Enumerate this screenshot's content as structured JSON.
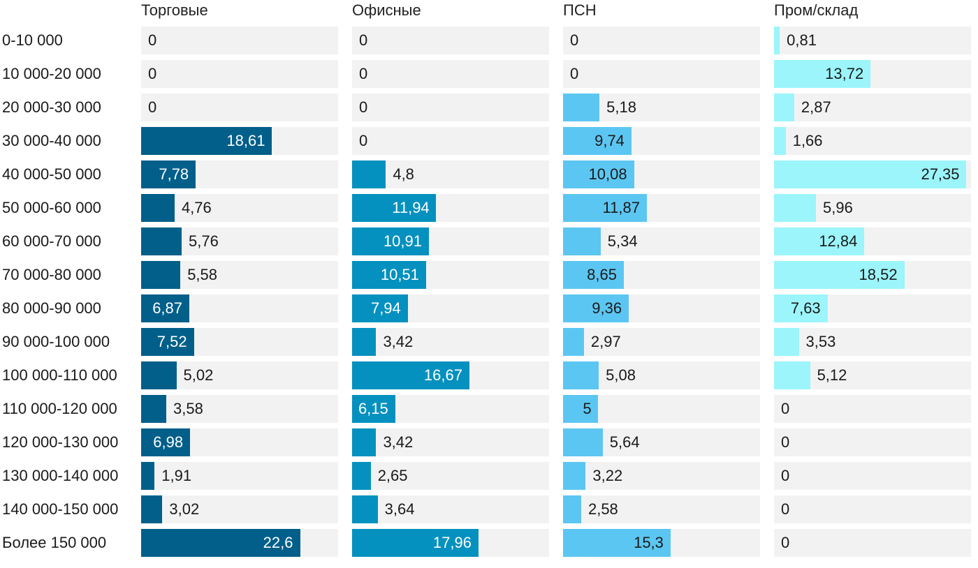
{
  "chart_data": {
    "type": "bar",
    "orientation": "horizontal",
    "layout": "small-multiples",
    "title": "",
    "xlabel": "",
    "ylabel": "",
    "xlim": [
      0,
      28
    ],
    "grid": false,
    "legend": "none",
    "categories": [
      "0-10 000",
      "10 000-20 000",
      "20 000-30 000",
      "30 000-40 000",
      "40 000-50 000",
      "50 000-60 000",
      "60 000-70 000",
      "70 000-80 000",
      "80 000-90 000",
      "90 000-100 000",
      "100 000-110 000",
      "110 000-120 000",
      "120 000-130 000",
      "130 000-140 000",
      "140 000-150 000",
      "Более 150 000"
    ],
    "series": [
      {
        "name": "Торговые",
        "color": "#015f8a",
        "label_color_inside": "#ffffff",
        "values": [
          0,
          0,
          0,
          18.61,
          7.78,
          4.76,
          5.76,
          5.58,
          6.87,
          7.52,
          5.02,
          3.58,
          6.98,
          1.91,
          3.02,
          22.6
        ],
        "labels": [
          "0",
          "0",
          "0",
          "18,61",
          "7,78",
          "4,76",
          "5,76",
          "5,58",
          "6,87",
          "7,52",
          "5,02",
          "3,58",
          "6,98",
          "1,91",
          "3,02",
          "22,6"
        ]
      },
      {
        "name": "Офисные",
        "color": "#0591bf",
        "label_color_inside": "#ffffff",
        "values": [
          0,
          0,
          0,
          0,
          4.8,
          11.94,
          10.91,
          10.51,
          7.94,
          3.42,
          16.67,
          6.15,
          3.42,
          2.65,
          3.64,
          17.96
        ],
        "labels": [
          "0",
          "0",
          "0",
          "0",
          "4,8",
          "11,94",
          "10,91",
          "10,51",
          "7,94",
          "3,42",
          "16,67",
          "6,15",
          "3,42",
          "2,65",
          "3,64",
          "17,96"
        ]
      },
      {
        "name": "ПСН",
        "color": "#5cc6f2",
        "label_color_inside": "#1a1a1a",
        "values": [
          0,
          0,
          5.18,
          9.74,
          10.08,
          11.87,
          5.34,
          8.65,
          9.36,
          2.97,
          5.08,
          5,
          5.64,
          3.22,
          2.58,
          15.3
        ],
        "labels": [
          "0",
          "0",
          "5,18",
          "9,74",
          "10,08",
          "11,87",
          "5,34",
          "8,65",
          "9,36",
          "2,97",
          "5,08",
          "5",
          "5,64",
          "3,22",
          "2,58",
          "15,3"
        ]
      },
      {
        "name": "Пром/склад",
        "color": "#9bf5fa",
        "label_color_inside": "#1a1a1a",
        "values": [
          0.81,
          13.72,
          2.87,
          1.66,
          27.35,
          5.96,
          12.84,
          18.52,
          7.63,
          3.53,
          5.12,
          0,
          0,
          0,
          0,
          0
        ],
        "labels": [
          "0,81",
          "13,72",
          "2,87",
          "1,66",
          "27,35",
          "5,96",
          "12,84",
          "18,52",
          "7,63",
          "3,53",
          "5,12",
          "0",
          "0",
          "0",
          "0",
          "0"
        ]
      }
    ]
  }
}
